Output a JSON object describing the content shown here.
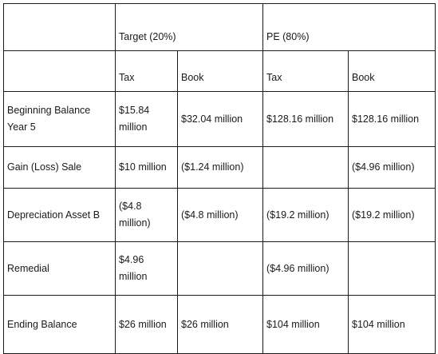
{
  "header": {
    "group_target": "Target (20%)",
    "group_pe": "PE (80%)",
    "sub_tax_1": "Tax",
    "sub_book_1": "Book",
    "sub_tax_2": "Tax",
    "sub_book_2": "Book"
  },
  "rows": [
    {
      "label": "Beginning Balance Year 5",
      "target_tax": "$15.84 million",
      "target_book": "$32.04 million",
      "pe_tax": "$128.16 million",
      "pe_book": "$128.16 million"
    },
    {
      "label": "Gain (Loss) Sale",
      "target_tax": "$10 million",
      "target_book": "($1.24 million)",
      "pe_tax": "",
      "pe_book": "($4.96 million)"
    },
    {
      "label": "Depreciation Asset B",
      "target_tax": "($4.8 million)",
      "target_book": "($4.8 million)",
      "pe_tax": "($19.2 million)",
      "pe_book": "($19.2 million)"
    },
    {
      "label": "Remedial",
      "target_tax": "$4.96 million",
      "target_book": "",
      "pe_tax": "($4.96 million)",
      "pe_book": ""
    },
    {
      "label": "Ending Balance",
      "target_tax": "$26 million",
      "target_book": "$26 million",
      "pe_tax": "$104 million",
      "pe_book": "$104 million"
    }
  ]
}
